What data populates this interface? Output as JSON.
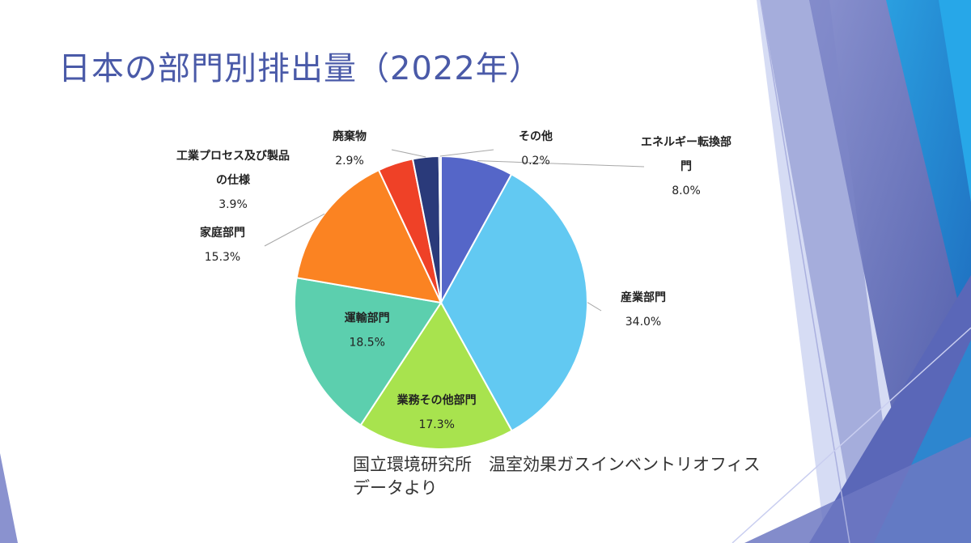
{
  "slide": {
    "title": "日本の部門別排出量（2022年）",
    "source_line1": "国立環境研究所　温室効果ガスインベントリオフィス",
    "source_line2": "データより"
  },
  "chart_data": {
    "type": "pie",
    "title": "",
    "start_angle_deg": 0,
    "direction": "clockwise",
    "slices": [
      {
        "label": "エネルギー転換部門",
        "label_lines": [
          "エネルギー転換部",
          "門"
        ],
        "value": 8.0,
        "display": "8.0%",
        "color": "#5566c8"
      },
      {
        "label": "産業部門",
        "label_lines": [
          "産業部門"
        ],
        "value": 34.0,
        "display": "34.0%",
        "color": "#62c9f2"
      },
      {
        "label": "業務その他部門",
        "label_lines": [
          "業務その他部門"
        ],
        "value": 17.3,
        "display": "17.3%",
        "color": "#a8e34e"
      },
      {
        "label": "運輸部門",
        "label_lines": [
          "運輸部門"
        ],
        "value": 18.5,
        "display": "18.5%",
        "color": "#5ccfae"
      },
      {
        "label": "家庭部門",
        "label_lines": [
          "家庭部門"
        ],
        "value": 15.3,
        "display": "15.3%",
        "color": "#fb8322"
      },
      {
        "label": "工業プロセス及び製品の仕様",
        "label_lines": [
          "工業プロセス及び製品",
          "の仕様"
        ],
        "value": 3.9,
        "display": "3.9%",
        "color": "#ef4127"
      },
      {
        "label": "廃棄物",
        "label_lines": [
          "廃棄物"
        ],
        "value": 2.9,
        "display": "2.9%",
        "color": "#2a3a7a"
      },
      {
        "label": "その他",
        "label_lines": [
          "その他"
        ],
        "value": 0.2,
        "display": "0.2%",
        "color": "#6a7fd6"
      }
    ]
  }
}
